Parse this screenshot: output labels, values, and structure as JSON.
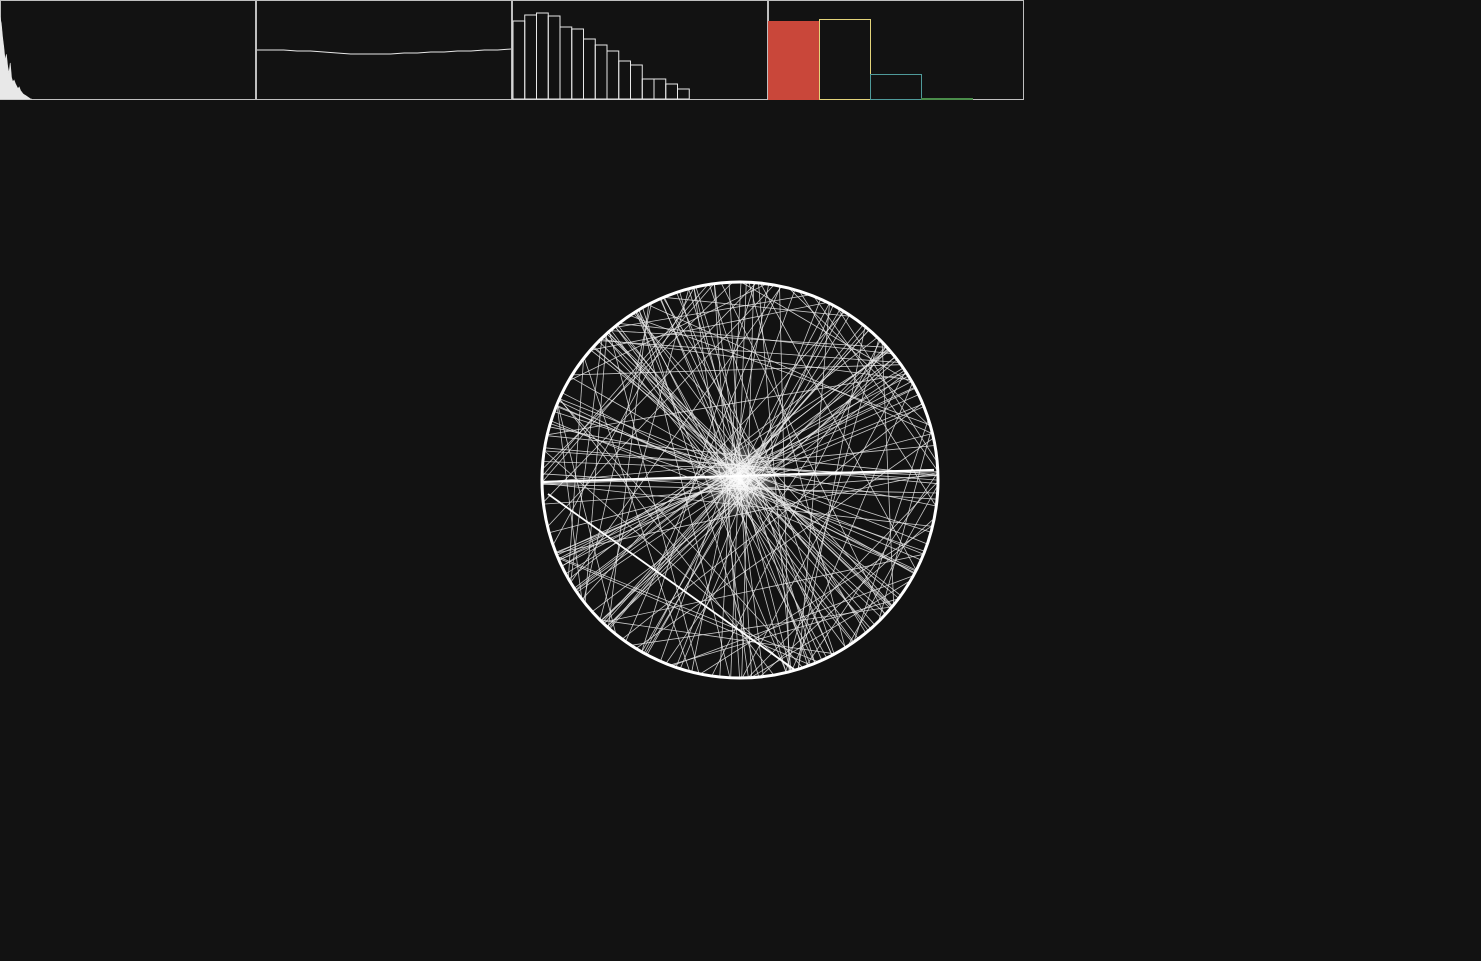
{
  "colors": {
    "background": "#121212",
    "stroke": "#e8e8e8",
    "panel_border": "#bfbfbf",
    "band_red": "#c9473a",
    "band_yellow": "#e3d37a",
    "band_teal": "#4f9a9a",
    "band_green": "#4a8c4a"
  },
  "panels": [
    {
      "name": "frequency-spectrum",
      "kind": "spectrum",
      "values": [
        0.95,
        0.88,
        0.72,
        0.6,
        0.45,
        0.52,
        0.38,
        0.3,
        0.42,
        0.25,
        0.2,
        0.22,
        0.18,
        0.15,
        0.12,
        0.14,
        0.1,
        0.08,
        0.06,
        0.05,
        0.04,
        0.03,
        0.02,
        0.01,
        0.0
      ]
    },
    {
      "name": "waveform",
      "kind": "line",
      "values": [
        0.5,
        0.5,
        0.5,
        0.49,
        0.49,
        0.48,
        0.47,
        0.46,
        0.46,
        0.46,
        0.46,
        0.47,
        0.47,
        0.48,
        0.48,
        0.49,
        0.49,
        0.5,
        0.5,
        0.51
      ]
    },
    {
      "name": "band-histogram",
      "kind": "bars",
      "values": [
        0.78,
        0.84,
        0.86,
        0.83,
        0.72,
        0.7,
        0.6,
        0.54,
        0.48,
        0.38,
        0.34,
        0.2,
        0.2,
        0.15,
        0.1
      ]
    },
    {
      "name": "band-energy",
      "kind": "colored-bars",
      "values": [
        0.78,
        0.8,
        0.25,
        0.01
      ]
    }
  ],
  "visualizer": {
    "name": "string-art-circle",
    "lines": 160
  }
}
